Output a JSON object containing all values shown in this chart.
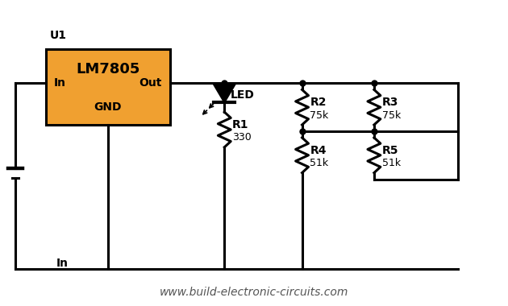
{
  "bg_color": "#ffffff",
  "line_color": "#000000",
  "ic_box_color": "#f0a030",
  "ic_box_label": "LM7805",
  "ic_label_in": "In",
  "ic_label_out": "Out",
  "ic_label_gnd": "GND",
  "ic_ref": "U1",
  "R1_label": "R1",
  "R1_val": "330",
  "R2_label": "R2",
  "R2_val": "75k",
  "R3_label": "R3",
  "R3_val": "75k",
  "R4_label": "R4",
  "R4_val": "51k",
  "R5_label": "R5",
  "R5_val": "51k",
  "LED_label": "LED",
  "website": "www.build-electronic-circuits.com",
  "line_width": 2.2,
  "font_size_label": 10,
  "font_size_value": 9,
  "font_size_ref": 11,
  "font_size_website": 10
}
